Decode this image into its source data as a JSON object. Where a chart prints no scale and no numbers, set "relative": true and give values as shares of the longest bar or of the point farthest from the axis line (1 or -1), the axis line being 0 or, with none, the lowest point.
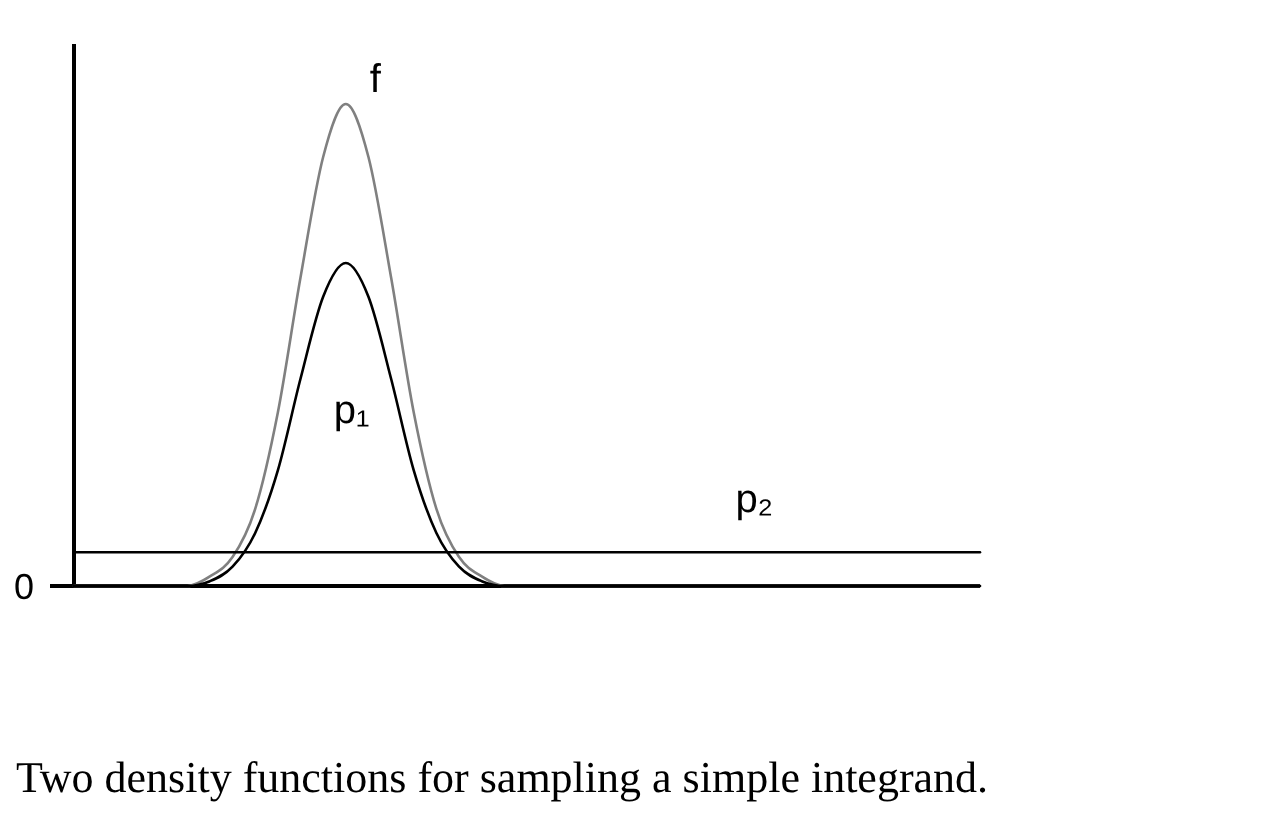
{
  "chart_data": {
    "type": "line",
    "relative": true,
    "categories": [
      null,
      null,
      null,
      null,
      null,
      null,
      null,
      null,
      null,
      null,
      null,
      null,
      null,
      null,
      null,
      null,
      null,
      null,
      null,
      null,
      null,
      null,
      null,
      null,
      null,
      null,
      null,
      null,
      null,
      null,
      null,
      null,
      null,
      null,
      null,
      null,
      null,
      null,
      null,
      null,
      null
    ],
    "series": [
      {
        "name": "f",
        "color": "#808080",
        "values": [
          0,
          0,
          0,
          0,
          0,
          0,
          0.02,
          0.06,
          0.16,
          0.36,
          0.64,
          0.89,
          1,
          0.89,
          0.64,
          0.36,
          0.16,
          0.06,
          0.02,
          0,
          0,
          0,
          0,
          0,
          0,
          0,
          0,
          0,
          0,
          0,
          0,
          0,
          0,
          0,
          0,
          0,
          0,
          0,
          0,
          0,
          0
        ]
      },
      {
        "name": "p₁",
        "color": "#000000",
        "values": [
          0,
          0,
          0,
          0,
          0,
          0,
          0.01,
          0.04,
          0.11,
          0.24,
          0.43,
          0.6,
          0.67,
          0.6,
          0.43,
          0.24,
          0.11,
          0.04,
          0.01,
          0,
          0,
          0,
          0,
          0,
          0,
          0,
          0,
          0,
          0,
          0,
          0,
          0,
          0,
          0,
          0,
          0,
          0,
          0,
          0,
          0,
          0
        ]
      },
      {
        "name": "p₂",
        "color": "#000000",
        "values": [
          0.07,
          0.07,
          0.07,
          0.07,
          0.07,
          0.07,
          0.07,
          0.07,
          0.07,
          0.07,
          0.07,
          0.07,
          0.07,
          0.07,
          0.07,
          0.07,
          0.07,
          0.07,
          0.07,
          0.07,
          0.07,
          0.07,
          0.07,
          0.07,
          0.07,
          0.07,
          0.07,
          0.07,
          0.07,
          0.07,
          0.07,
          0.07,
          0.07,
          0.07,
          0.07,
          0.07,
          0.07,
          0.07,
          0.07,
          0.07,
          0.07
        ]
      }
    ],
    "annotations": [
      "0",
      "Two density functions for sampling a simple integrand."
    ]
  }
}
